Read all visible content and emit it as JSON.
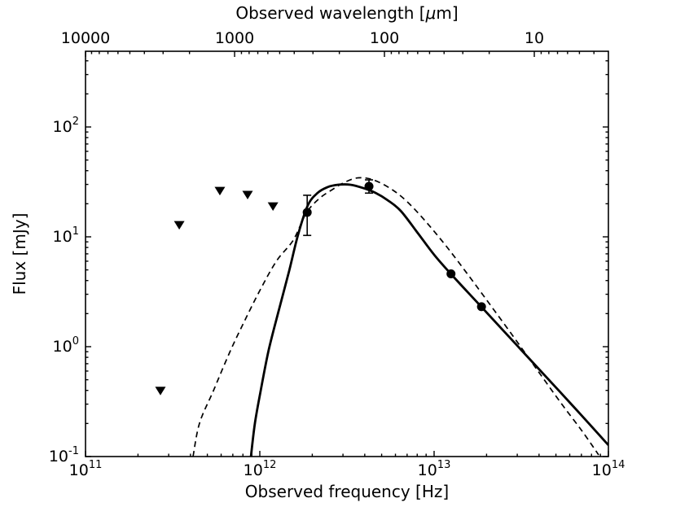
{
  "figure": {
    "top_title_pre": "Observed wavelength [",
    "top_title_mu": "μ",
    "top_title_post": "m]",
    "x_title": "Observed frequency [Hz]",
    "y_title": "Flux [mJy]"
  },
  "chart_data": {
    "type": "line",
    "title": "Observed wavelength [μm]",
    "xlabel": "Observed frequency [Hz]",
    "ylabel": "Flux [mJy]",
    "x_axis": {
      "scale": "log",
      "min_exp": 11,
      "max_exp": 14,
      "major_exps": [
        11,
        12,
        13,
        14
      ]
    },
    "y_axis": {
      "scale": "log",
      "min_exp": -1,
      "max_exp": 2.689,
      "major_exps": [
        -1,
        0,
        1,
        2
      ]
    },
    "top_axis": {
      "unit": "um",
      "major_labels": [
        "10000",
        "1000",
        "100",
        "10"
      ],
      "major_values": [
        10000,
        1000,
        100,
        10
      ],
      "scale_a": 1.1449,
      "scale_b": 0.2866
    },
    "line_color": "#000000",
    "background": "#ffffff",
    "upper_limits": [
      {
        "nu_hz": 269000000000.0,
        "flux_mjy": 0.4
      },
      {
        "nu_hz": 345000000000.0,
        "flux_mjy": 12.9
      },
      {
        "nu_hz": 590000000000.0,
        "flux_mjy": 26.4
      },
      {
        "nu_hz": 851000000000.0,
        "flux_mjy": 24.3
      },
      {
        "nu_hz": 1190000000000.0,
        "flux_mjy": 19.1
      }
    ],
    "detections": [
      {
        "nu_hz": 1870000000000.0,
        "flux_mjy": 16.7,
        "err_hi_mjy": 23.9,
        "err_lo_mjy": 10.3
      },
      {
        "nu_hz": 4230000000000.0,
        "flux_mjy": 28.8,
        "err_hi_mjy": 33.0,
        "err_lo_mjy": 25.0
      },
      {
        "nu_hz": 12500000000000.0,
        "flux_mjy": 4.6,
        "err_hi_mjy": null,
        "err_lo_mjy": null
      },
      {
        "nu_hz": 18700000000000.0,
        "flux_mjy": 2.31,
        "err_hi_mjy": null,
        "err_lo_mjy": null
      }
    ],
    "series": [
      {
        "name": "model-solid",
        "style": "solid",
        "log_points": [
          [
            11.949,
            -1.0
          ],
          [
            11.972,
            -0.696
          ],
          [
            12.005,
            -0.4
          ],
          [
            12.051,
            -0.03
          ],
          [
            12.107,
            0.319
          ],
          [
            12.168,
            0.689
          ],
          [
            12.22,
            1.022
          ],
          [
            12.276,
            1.289
          ],
          [
            12.332,
            1.4
          ],
          [
            12.388,
            1.452
          ],
          [
            12.449,
            1.474
          ],
          [
            12.519,
            1.474
          ],
          [
            12.593,
            1.444
          ],
          [
            12.664,
            1.4
          ],
          [
            12.734,
            1.333
          ],
          [
            12.808,
            1.237
          ],
          [
            12.902,
            1.044
          ],
          [
            13.0,
            0.837
          ],
          [
            13.098,
            0.659
          ],
          [
            13.271,
            0.363
          ],
          [
            13.547,
            -0.111
          ],
          [
            13.78,
            -0.511
          ],
          [
            14.0,
            -0.896
          ]
        ]
      },
      {
        "name": "model-dashed",
        "style": "dashed",
        "log_points": [
          [
            11.617,
            -1.0
          ],
          [
            11.654,
            -0.696
          ],
          [
            11.734,
            -0.4
          ],
          [
            11.827,
            -0.052
          ],
          [
            11.911,
            0.23
          ],
          [
            12.005,
            0.526
          ],
          [
            12.098,
            0.785
          ],
          [
            12.192,
            0.97
          ],
          [
            12.266,
            1.215
          ],
          [
            12.341,
            1.348
          ],
          [
            12.416,
            1.43
          ],
          [
            12.486,
            1.496
          ],
          [
            12.565,
            1.537
          ],
          [
            12.65,
            1.519
          ],
          [
            12.752,
            1.437
          ],
          [
            12.846,
            1.319
          ],
          [
            12.963,
            1.119
          ],
          [
            13.079,
            0.896
          ],
          [
            13.196,
            0.652
          ],
          [
            13.313,
            0.4
          ],
          [
            13.453,
            0.096
          ],
          [
            13.593,
            -0.215
          ],
          [
            13.734,
            -0.526
          ],
          [
            13.85,
            -0.77
          ],
          [
            13.944,
            -0.985
          ]
        ]
      }
    ]
  }
}
